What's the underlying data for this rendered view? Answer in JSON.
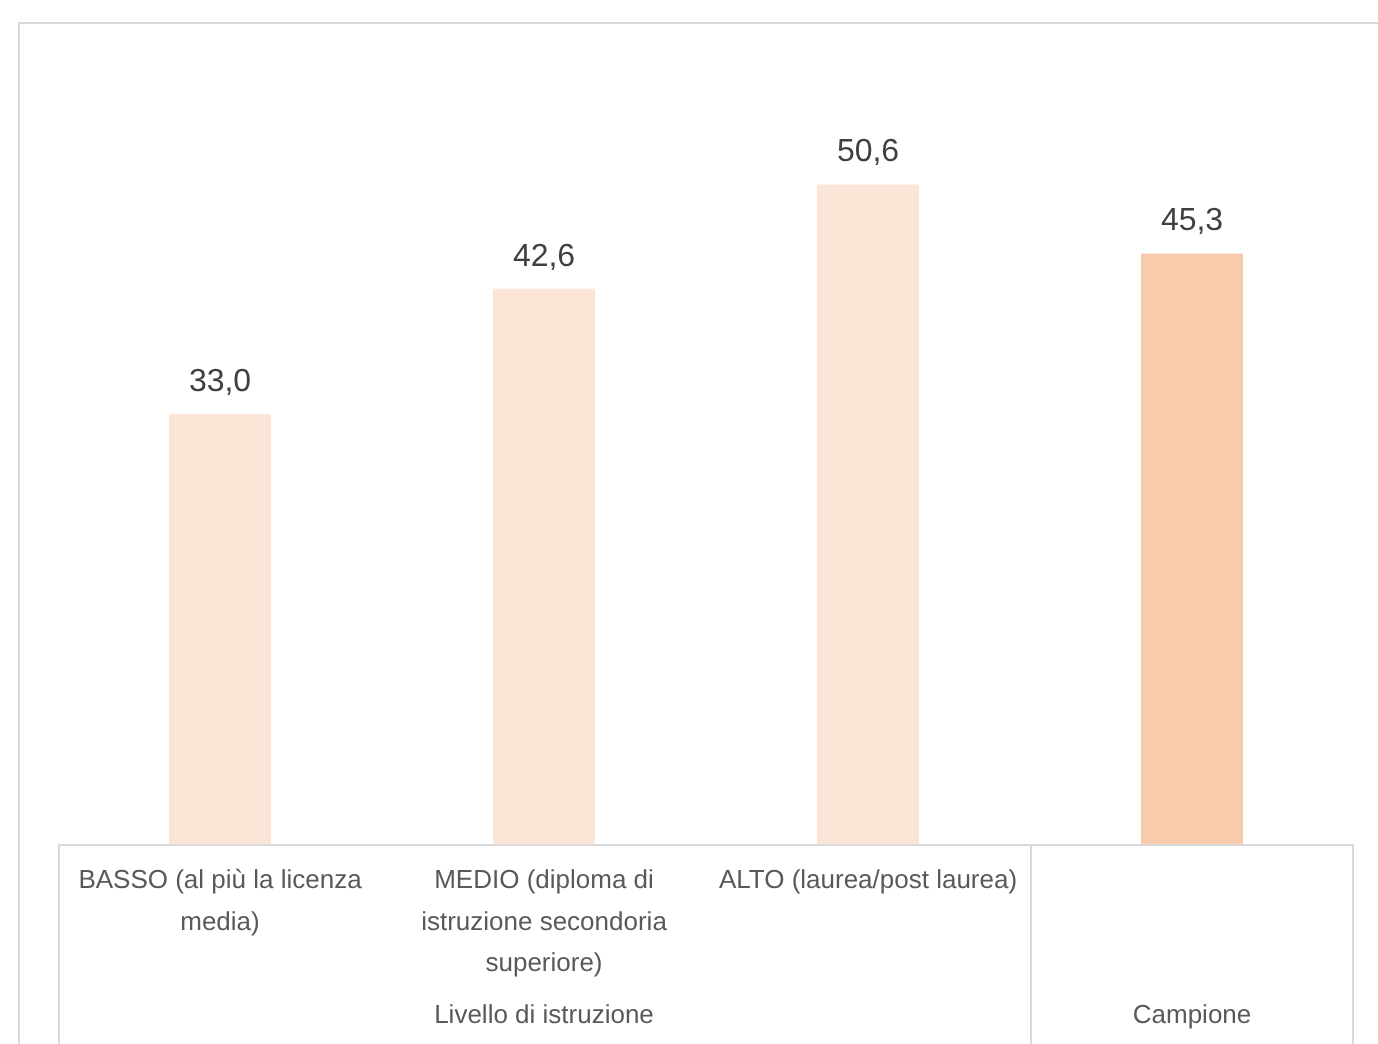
{
  "chart_data": {
    "type": "bar",
    "categories": [
      "BASSO (al più la licenza media)",
      "MEDIO (diploma di istruzione secondoria superiore)",
      "ALTO (laurea/post laurea)",
      null
    ],
    "values": [
      33.0,
      42.6,
      50.6,
      45.3
    ],
    "colors": [
      "#fbe5d6",
      "#fbe5d6",
      "#fbe5d6",
      "#f8cbad"
    ],
    "value_labels": [
      "33,0",
      "42,6",
      "50,6",
      "45,3"
    ],
    "annotations": [
      "Livello di istruzione",
      "Campione"
    ]
  }
}
